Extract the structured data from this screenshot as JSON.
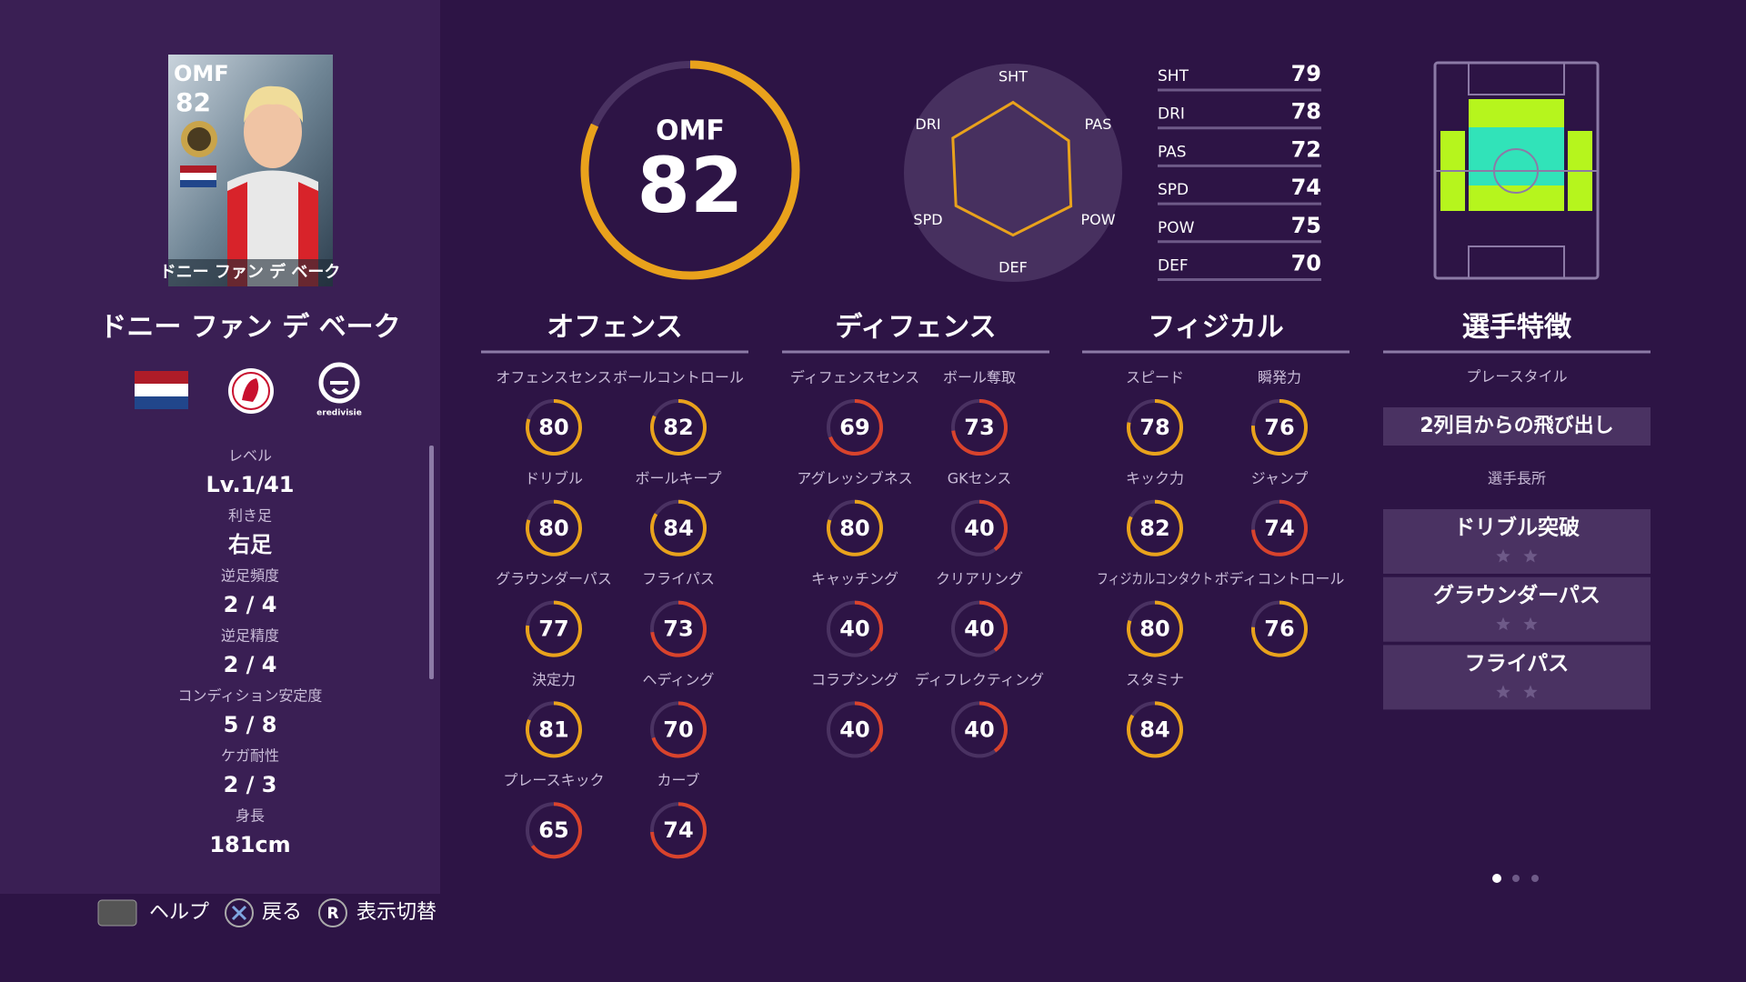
{
  "card": {
    "position": "OMF",
    "rating": 82,
    "name": "ドニー ファン デ ベーク"
  },
  "player_name": "ドニー ファン デ ベーク",
  "league_logo": "eredivisie",
  "profile": [
    {
      "label": "レベル",
      "value": "Lv.1/41"
    },
    {
      "label": "利き足",
      "value": "右足"
    },
    {
      "label": "逆足頻度",
      "value": "2 / 4"
    },
    {
      "label": "逆足精度",
      "value": "2 / 4"
    },
    {
      "label": "コンディション安定度",
      "value": "5 / 8"
    },
    {
      "label": "ケガ耐性",
      "value": "2 / 3"
    },
    {
      "label": "身長",
      "value": "181cm"
    }
  ],
  "overall": {
    "position": "OMF",
    "rating": 82,
    "color": "#e9a21c"
  },
  "summary": [
    {
      "label": "SHT",
      "value": 79
    },
    {
      "label": "DRI",
      "value": 78
    },
    {
      "label": "PAS",
      "value": 72
    },
    {
      "label": "SPD",
      "value": 74
    },
    {
      "label": "POW",
      "value": 75
    },
    {
      "label": "DEF",
      "value": 70
    }
  ],
  "radar_color": "#e9a21c",
  "sections": [
    {
      "title": "オフェンス",
      "stats": [
        {
          "label": "オフェンスセンス",
          "value": 80,
          "color": "#e9a21c"
        },
        {
          "label": "ボールコントロール",
          "value": 82,
          "color": "#e9a21c"
        },
        {
          "label": "ドリブル",
          "value": 80,
          "color": "#e9a21c"
        },
        {
          "label": "ボールキープ",
          "value": 84,
          "color": "#e9a21c"
        },
        {
          "label": "グラウンダーパス",
          "value": 77,
          "color": "#e9a21c"
        },
        {
          "label": "フライパス",
          "value": 73,
          "color": "#d9432c"
        },
        {
          "label": "決定力",
          "value": 81,
          "color": "#e9a21c"
        },
        {
          "label": "ヘディング",
          "value": 70,
          "color": "#d9432c"
        },
        {
          "label": "プレースキック",
          "value": 65,
          "color": "#d9432c"
        },
        {
          "label": "カーブ",
          "value": 74,
          "color": "#d9432c"
        }
      ]
    },
    {
      "title": "ディフェンス",
      "stats": [
        {
          "label": "ディフェンスセンス",
          "value": 69,
          "color": "#d9432c"
        },
        {
          "label": "ボール奪取",
          "value": 73,
          "color": "#d9432c"
        },
        {
          "label": "アグレッシブネス",
          "value": 80,
          "color": "#e9a21c"
        },
        {
          "label": "GKセンス",
          "value": 40,
          "color": "#d9432c"
        },
        {
          "label": "キャッチング",
          "value": 40,
          "color": "#d9432c"
        },
        {
          "label": "クリアリング",
          "value": 40,
          "color": "#d9432c"
        },
        {
          "label": "コラプシング",
          "value": 40,
          "color": "#d9432c"
        },
        {
          "label": "ディフレクティング",
          "value": 40,
          "color": "#d9432c"
        }
      ]
    },
    {
      "title": "フィジカル",
      "stats": [
        {
          "label": "スピード",
          "value": 78,
          "color": "#e9a21c"
        },
        {
          "label": "瞬発力",
          "value": 76,
          "color": "#e9a21c"
        },
        {
          "label": "キック力",
          "value": 82,
          "color": "#e9a21c"
        },
        {
          "label": "ジャンプ",
          "value": 74,
          "color": "#d9432c"
        },
        {
          "label": "フィジカルコンタクト",
          "value": 80,
          "color": "#e9a21c"
        },
        {
          "label": "ボディコントロール",
          "value": 76,
          "color": "#e9a21c"
        },
        {
          "label": "スタミナ",
          "value": 84,
          "color": "#e9a21c"
        }
      ]
    }
  ],
  "traits": {
    "title": "選手特徴",
    "playstyle_label": "プレースタイル",
    "playstyle": "2列目からの飛び出し",
    "skills_label": "選手長所",
    "skills": [
      "ドリブル突破",
      "グラウンダーパス",
      "フライパス"
    ]
  },
  "footer": {
    "help": "ヘルプ",
    "back": "戻る",
    "switch_key": "R",
    "switch": "表示切替"
  }
}
